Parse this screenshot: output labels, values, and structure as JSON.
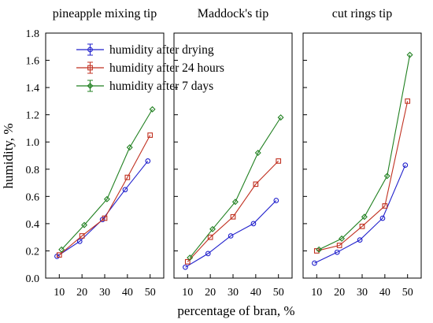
{
  "ylabel": "humidity, %",
  "xlabel": "percentage of  bran, %",
  "legend": [
    {
      "label": "humidity after drying",
      "color": "#2020cc",
      "marker": "circle"
    },
    {
      "label": "humidity after 24 hours",
      "color": "#c03020",
      "marker": "square"
    },
    {
      "label": "humidity after 7 days",
      "color": "#208020",
      "marker": "diamond"
    }
  ],
  "chart_data": [
    {
      "type": "line",
      "title": "pineapple mixing tip",
      "x_ticks": [
        "10",
        "20",
        "30",
        "40",
        "50"
      ],
      "y_ticks": [
        "0.0",
        "0.2",
        "0.4",
        "0.6",
        "0.8",
        "1.0",
        "1.2",
        "1.4",
        "1.6",
        "1.8"
      ],
      "ylim": [
        0,
        1.8
      ],
      "legend": "top-left",
      "series": [
        {
          "name": "humidity after drying",
          "x": [
            9,
            19,
            29,
            39,
            49
          ],
          "y": [
            0.16,
            0.27,
            0.43,
            0.65,
            0.86
          ]
        },
        {
          "name": "humidity after 24 hours",
          "x": [
            10,
            20,
            30,
            40,
            50
          ],
          "y": [
            0.17,
            0.31,
            0.44,
            0.74,
            1.05
          ]
        },
        {
          "name": "humidity after 7 days",
          "x": [
            11,
            21,
            31,
            41,
            51
          ],
          "y": [
            0.21,
            0.39,
            0.58,
            0.96,
            1.24
          ]
        }
      ]
    },
    {
      "type": "line",
      "title": "Maddock's tip",
      "x_ticks": [
        "10",
        "20",
        "30",
        "40",
        "50"
      ],
      "ylim": [
        0,
        1.8
      ],
      "series": [
        {
          "name": "humidity after drying",
          "x": [
            9,
            19,
            29,
            39,
            49
          ],
          "y": [
            0.08,
            0.18,
            0.31,
            0.4,
            0.57
          ]
        },
        {
          "name": "humidity after 24 hours",
          "x": [
            10,
            20,
            30,
            40,
            50
          ],
          "y": [
            0.12,
            0.3,
            0.45,
            0.69,
            0.86
          ]
        },
        {
          "name": "humidity after 7 days",
          "x": [
            11,
            21,
            31,
            41,
            51
          ],
          "y": [
            0.15,
            0.36,
            0.56,
            0.92,
            1.18
          ]
        }
      ]
    },
    {
      "type": "line",
      "title": "cut rings tip",
      "x_ticks": [
        "10",
        "20",
        "30",
        "40",
        "50"
      ],
      "ylim": [
        0,
        1.8
      ],
      "series": [
        {
          "name": "humidity after drying",
          "x": [
            9,
            19,
            29,
            39,
            49
          ],
          "y": [
            0.11,
            0.19,
            0.28,
            0.44,
            0.83
          ]
        },
        {
          "name": "humidity after 24 hours",
          "x": [
            10,
            20,
            30,
            40,
            50
          ],
          "y": [
            0.2,
            0.24,
            0.38,
            0.53,
            1.3
          ]
        },
        {
          "name": "humidity after 7 days",
          "x": [
            11,
            21,
            31,
            41,
            51
          ],
          "y": [
            0.21,
            0.29,
            0.45,
            0.75,
            1.64
          ]
        }
      ]
    }
  ]
}
